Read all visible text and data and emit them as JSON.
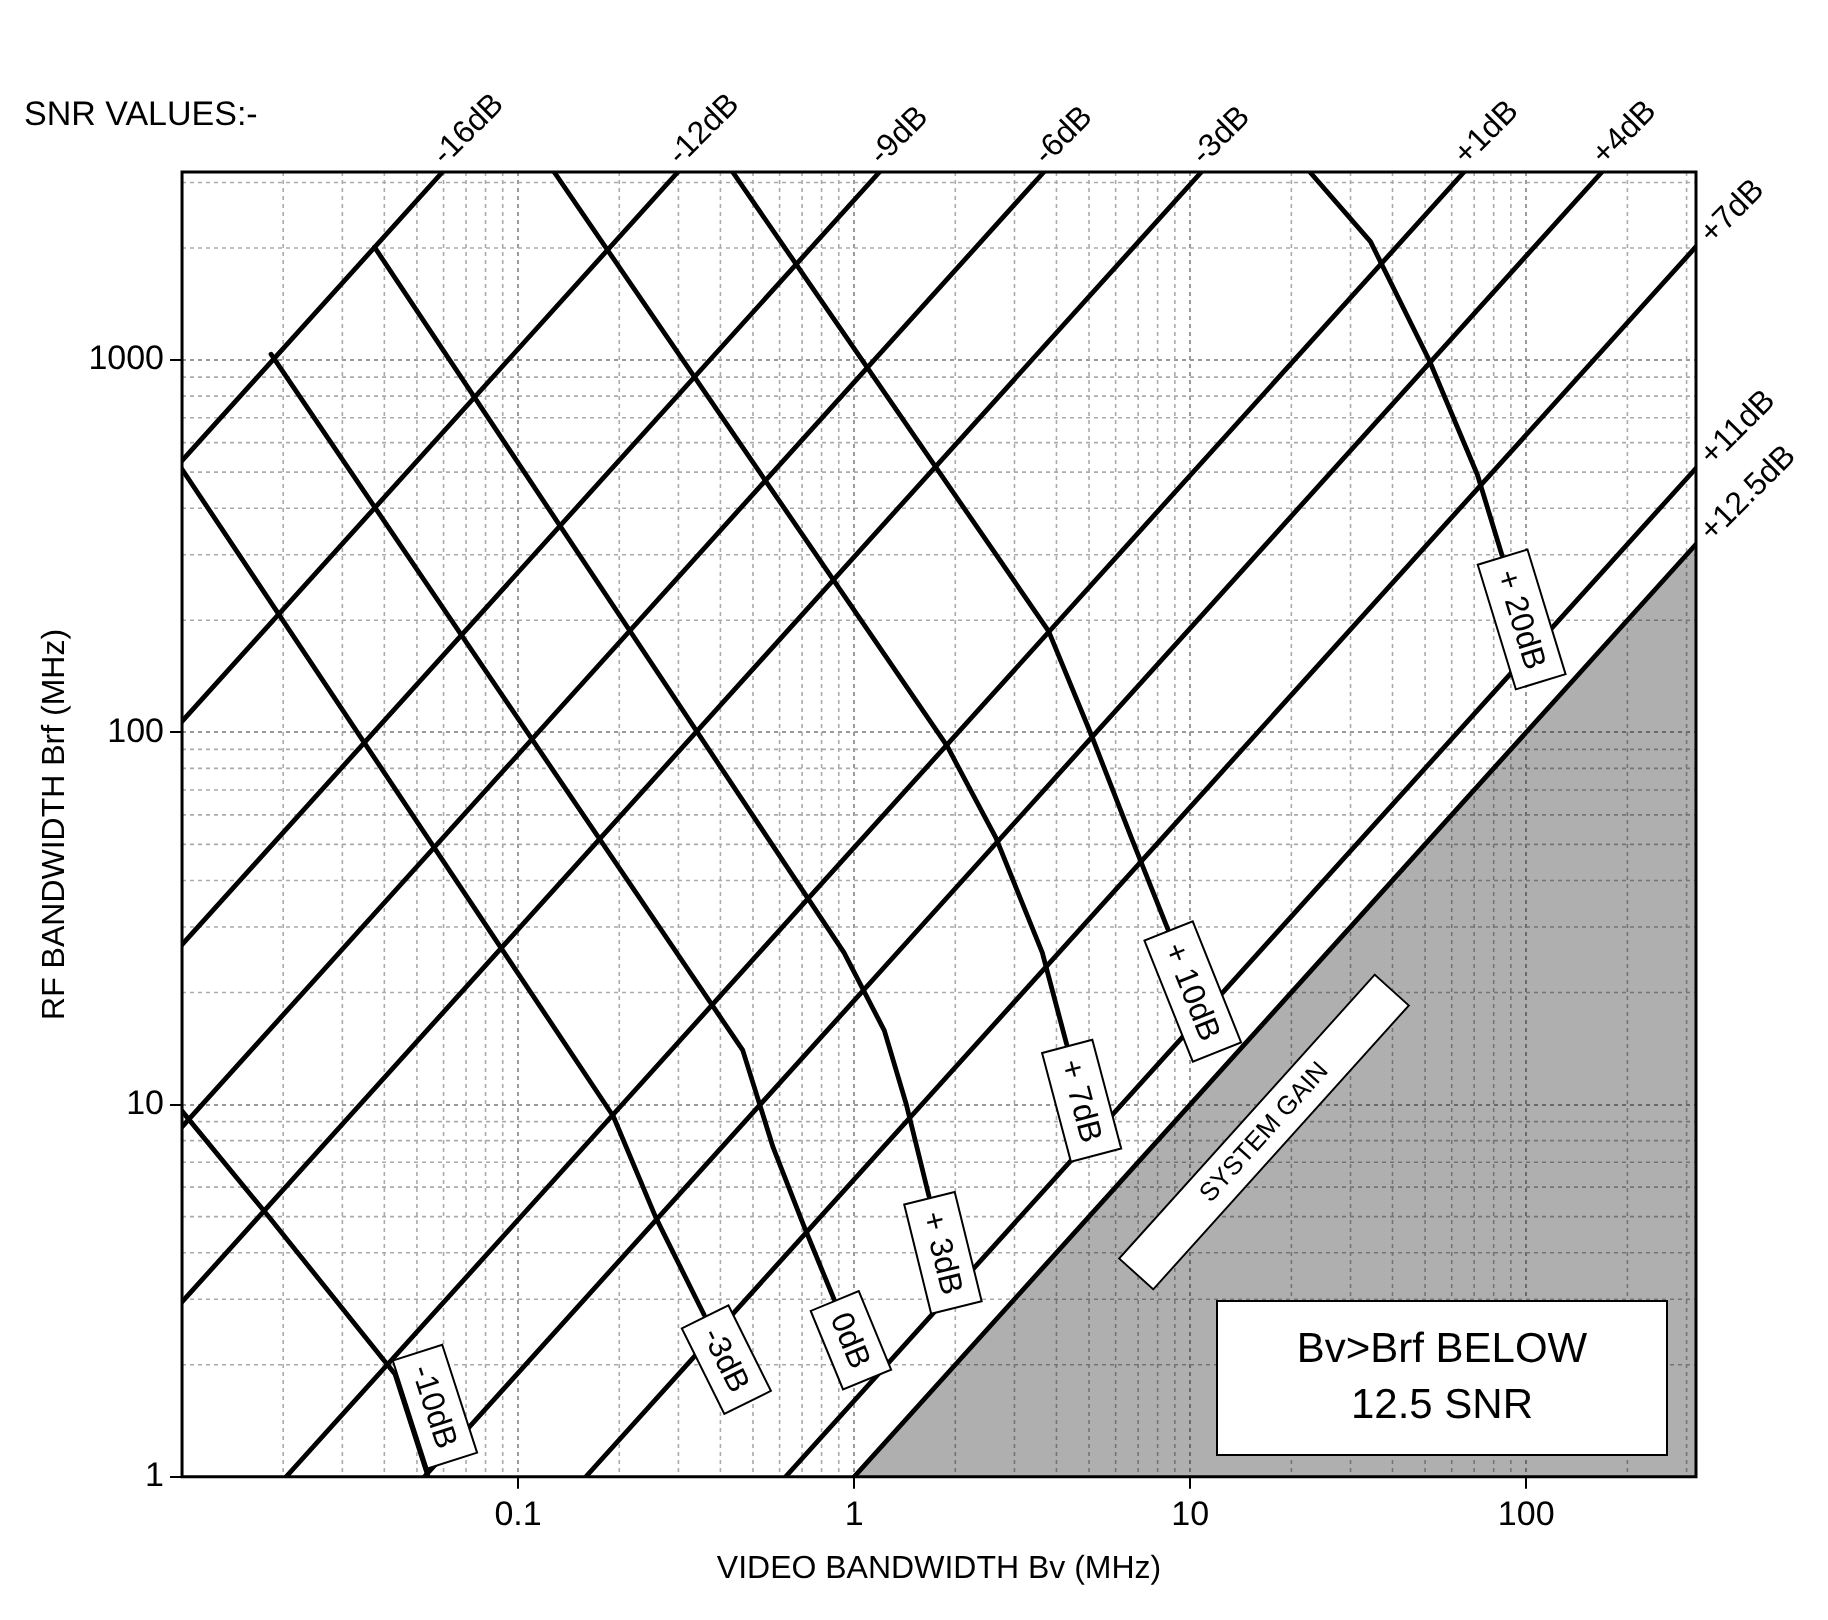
{
  "chart_data": {
    "type": "line",
    "xlabel": "VIDEO BANDWIDTH Bv (MHz)",
    "ylabel": "RF BANDWIDTH Brf (MHz)",
    "log": "xy",
    "xlim": [
      0.01,
      320
    ],
    "ylim": [
      1,
      3200
    ],
    "xticks": [
      0.1,
      1,
      10,
      100
    ],
    "yticks": [
      1,
      10,
      100,
      1000
    ],
    "grid": true,
    "legend": false,
    "marker": "none",
    "line_style": "solid",
    "annotations": [
      "SNR VALUES:-",
      "SYSTEM GAIN",
      "Bv>Brf BELOW 12.5 SNR"
    ],
    "series": [
      {
        "name": "-16dB",
        "color": "#000000",
        "x": [
          0.01,
          0.0596
        ],
        "values": [
          537,
          3200
        ]
      },
      {
        "name": "-12dB",
        "color": "#000000",
        "x": [
          0.01,
          0.299
        ],
        "values": [
          107,
          3200
        ]
      },
      {
        "name": "-9dB",
        "color": "#000000",
        "x": [
          0.01,
          1.19
        ],
        "values": [
          26.9,
          3200
        ]
      },
      {
        "name": "-6dB",
        "color": "#000000",
        "x": [
          0.01,
          3.67
        ],
        "values": [
          8.71,
          3200
        ]
      },
      {
        "name": "-3dB",
        "color": "#000000",
        "x": [
          0.01,
          10.8
        ],
        "values": [
          2.95,
          3200
        ]
      },
      {
        "name": "+1dB",
        "color": "#000000",
        "x": [
          0.0204,
          65.3
        ],
        "values": [
          1,
          3200
        ]
      },
      {
        "name": "+4dB",
        "color": "#000000",
        "x": [
          0.0526,
          168
        ],
        "values": [
          1,
          3200
        ]
      },
      {
        "name": "+7dB",
        "color": "#000000",
        "x": [
          0.159,
          320
        ],
        "values": [
          1,
          2016
        ]
      },
      {
        "name": "+11dB",
        "color": "#000000",
        "x": [
          0.625,
          320
        ],
        "values": [
          1,
          512
        ]
      },
      {
        "name": "+12.5dB",
        "color": "#000000",
        "type": "area",
        "x": [
          1,
          320
        ],
        "values": [
          1,
          320
        ]
      },
      {
        "name": "-10dB",
        "color": "#000000",
        "x": [
          0.01,
          0.0182,
          0.043,
          0.054
        ],
        "values": [
          9.6,
          4.97,
          1.89,
          1
        ]
      },
      {
        "name": "-3dB",
        "color": "#000000",
        "x": [
          0.01,
          0.192,
          0.257,
          0.358
        ],
        "values": [
          509,
          9.3,
          4.97,
          2.72
        ]
      },
      {
        "name": "0dB",
        "color": "#000000",
        "x": [
          0.0184,
          0.466,
          0.574,
          0.707,
          0.871
        ],
        "values": [
          1037,
          14,
          7.67,
          4.74,
          3
        ]
      },
      {
        "name": "+ 3dB",
        "color": "#000000",
        "x": [
          0.0374,
          0.933,
          1.23,
          1.43,
          1.67
        ],
        "values": [
          2010,
          25.6,
          15.8,
          10,
          5.67
        ]
      },
      {
        "name": "+ 7dB",
        "color": "#000000",
        "x": [
          0.128,
          1.89,
          2.64,
          3.63,
          4.29
        ],
        "values": [
          3200,
          91.9,
          52.1,
          25.6,
          14.5
        ]
      },
      {
        "name": "+ 10dB",
        "color": "#000000",
        "x": [
          0.435,
          2.75,
          3.79,
          5.07,
          6.68,
          8.58
        ],
        "values": [
          3200,
          285,
          187,
          98.8,
          52.1,
          29.6
        ]
      },
      {
        "name": "+ 20dB",
        "color": "#000000",
        "x": [
          22.7,
          34.4,
          51.4,
          71.6,
          84.7
        ],
        "values": [
          3200,
          2080,
          1000,
          491,
          299
        ]
      }
    ]
  }
}
